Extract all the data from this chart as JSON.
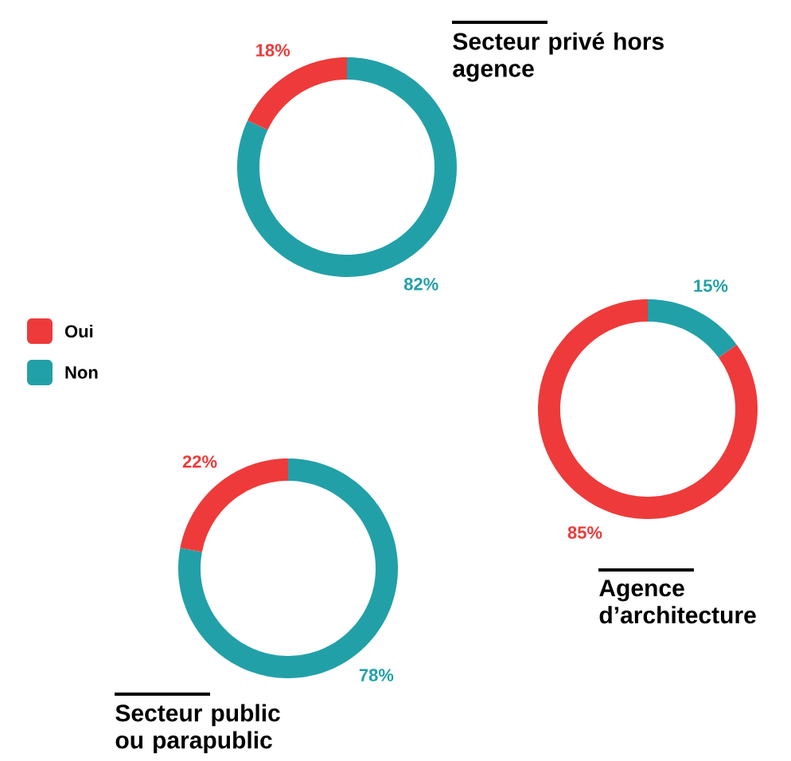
{
  "chart_data": [
    {
      "type": "donut",
      "title": "Secteur privé hors agence",
      "categories": [
        "Oui",
        "Non"
      ],
      "values": [
        18,
        82
      ],
      "colors": [
        "#ee3a3a",
        "#22a0a8"
      ],
      "value_labels": [
        "18%",
        "82%"
      ],
      "legend": "left"
    },
    {
      "type": "donut",
      "title": "Agence d’architecture",
      "categories": [
        null,
        null
      ],
      "values": [
        85,
        15
      ],
      "colors": [
        "#ee3a3a",
        "#22a0a8"
      ],
      "value_labels": [
        "85%",
        "15%"
      ]
    },
    {
      "type": "donut",
      "title": "Secteur public ou parapublic",
      "categories": [
        null,
        null
      ],
      "values": [
        22,
        78
      ],
      "colors": [
        "#ee3a3a",
        "#22a0a8"
      ],
      "value_labels": [
        "22%",
        "78%"
      ]
    }
  ]
}
